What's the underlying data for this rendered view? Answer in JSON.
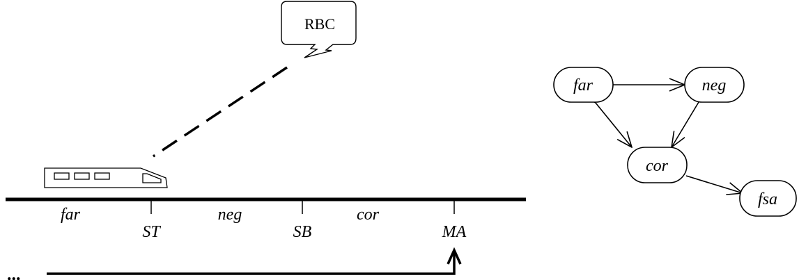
{
  "track": {
    "rbc_label": "RBC",
    "zones": [
      "far",
      "neg",
      "cor"
    ],
    "markers": [
      "ST",
      "SB",
      "MA"
    ],
    "ellipsis": "..."
  },
  "state_diagram": {
    "nodes": [
      "far",
      "neg",
      "cor",
      "fsa"
    ]
  }
}
